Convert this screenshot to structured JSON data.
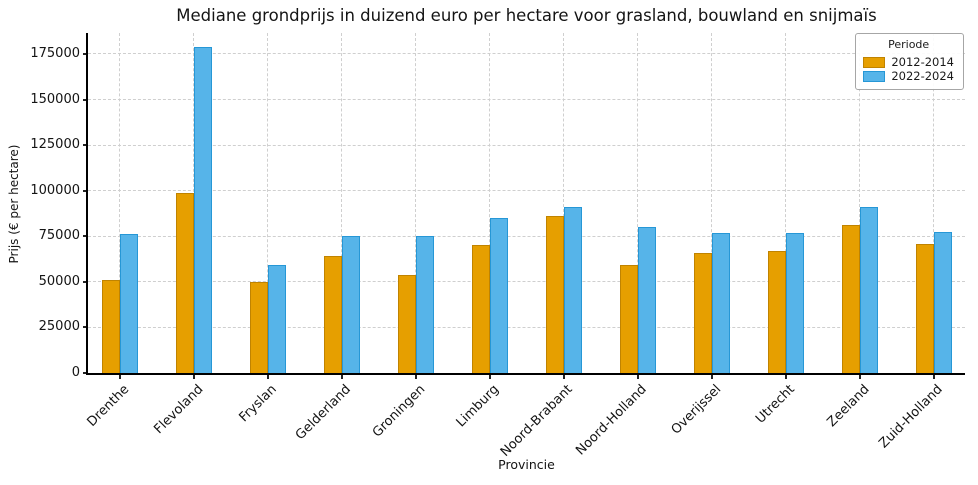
{
  "chart_data": {
    "type": "bar",
    "title": "Mediane grondprijs in duizend euro per hectare voor grasland, bouwland en snijmaïs",
    "xlabel": "Provincie",
    "ylabel": "Prijs (€ per hectare)",
    "categories": [
      "Drenthe",
      "Flevoland",
      "Fryslan",
      "Gelderland",
      "Groningen",
      "Limburg",
      "Noord-Brabant",
      "Noord-Holland",
      "Overijssel",
      "Utrecht",
      "Zeeland",
      "Zuid-Holland"
    ],
    "series": [
      {
        "name": "2012-2014",
        "color": "#E69F00",
        "edge_color": "#C08300",
        "values": [
          51000,
          99000,
          50000,
          64000,
          54000,
          70000,
          86000,
          59000,
          66000,
          67000,
          81000,
          71000
        ]
      },
      {
        "name": "2022-2024",
        "color": "#56B4E9",
        "edge_color": "#2697D6",
        "values": [
          76000,
          179000,
          59000,
          75000,
          75000,
          85000,
          91000,
          80000,
          77000,
          77000,
          91000,
          77500
        ]
      }
    ],
    "legend": {
      "title": "Periode",
      "position": "upper right"
    },
    "ylim": [
      0,
      186500
    ],
    "yticks": [
      0,
      25000,
      50000,
      75000,
      100000,
      125000,
      150000,
      175000
    ],
    "grid": true,
    "grid_style": "dashed",
    "background_color": "#ffffff",
    "grid_color": "#cfcfcf"
  }
}
